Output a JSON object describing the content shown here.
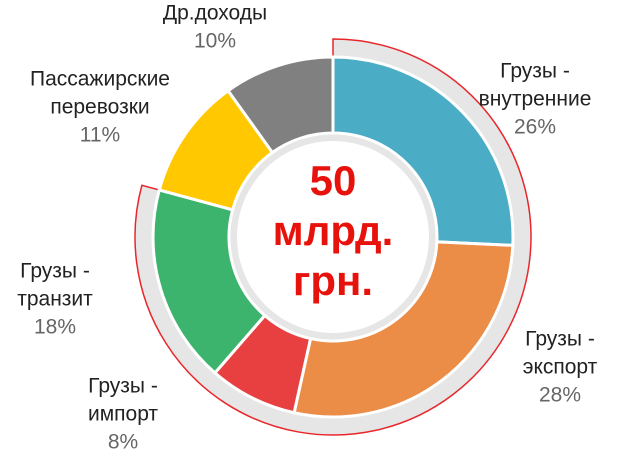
{
  "chart_data": {
    "type": "donut",
    "categories": [
      [
        "Грузы -",
        "внутренние"
      ],
      [
        "Грузы -",
        "экспорт"
      ],
      [
        "Грузы -",
        "импорт"
      ],
      [
        "Грузы -",
        "транзит"
      ],
      [
        "Пассажирские",
        "перевозки"
      ],
      [
        "Др.доходы"
      ]
    ],
    "values": [
      26,
      28,
      8,
      18,
      11,
      10
    ],
    "value_labels": [
      "26%",
      "28%",
      "8%",
      "18%",
      "11%",
      "10%"
    ],
    "colors": [
      "#4bacc6",
      "#eb8c47",
      "#e84040",
      "#3cb46e",
      "#ffc800",
      "#808080"
    ],
    "highlighted": [
      true,
      true,
      true,
      true,
      false,
      false
    ],
    "highlight_color": "#e8272b",
    "center_text": [
      "50",
      "млрд.",
      "грн."
    ],
    "center_color": "#e8120c"
  }
}
